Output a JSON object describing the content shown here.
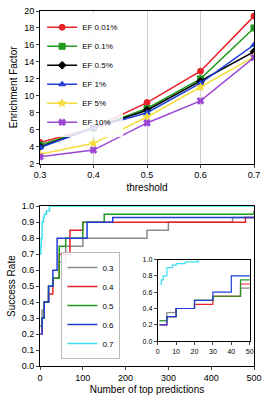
{
  "chart_data": [
    {
      "type": "line",
      "x_label": "threshold",
      "y_label": "Enrichment Factor",
      "x": [
        0.3,
        0.4,
        0.5,
        0.6,
        0.7
      ],
      "xlim": [
        0.3,
        0.7
      ],
      "xticks": [
        0.3,
        0.4,
        0.5,
        0.6,
        0.7
      ],
      "ylim": [
        2,
        20
      ],
      "yticks": [
        2,
        4,
        6,
        8,
        10,
        12,
        14,
        16,
        18,
        20
      ],
      "grid": true,
      "legend": "upper left",
      "series": [
        {
          "name": "EF 0.01%",
          "color": "#e8202a",
          "marker": "circle",
          "values": [
            4.5,
            6.2,
            9.2,
            12.9,
            19.4
          ]
        },
        {
          "name": "EF 0.1%",
          "color": "#1f9a1f",
          "marker": "square",
          "values": [
            4.2,
            6.2,
            8.5,
            12.0,
            18.0
          ]
        },
        {
          "name": "EF 0.5%",
          "color": "#000000",
          "marker": "diamond",
          "values": [
            4.0,
            6.2,
            8.3,
            11.7,
            15.2
          ]
        },
        {
          "name": "EF 1%",
          "color": "#1f3fd6",
          "marker": "triangle-up",
          "values": [
            3.9,
            6.2,
            8.0,
            11.5,
            16.0
          ]
        },
        {
          "name": "EF 5%",
          "color": "#f5dc3a",
          "marker": "star",
          "values": [
            3.1,
            4.4,
            7.5,
            11.0,
            14.6
          ]
        },
        {
          "name": "EF 10%",
          "color": "#9b45d6",
          "marker": "x",
          "values": [
            2.8,
            3.6,
            6.8,
            9.4,
            14.5
          ]
        }
      ]
    },
    {
      "type": "line",
      "x_label": "Number of top predictions",
      "y_label": "Success Rate",
      "xlim": [
        0,
        500
      ],
      "xticks": [
        0,
        100,
        200,
        300,
        400,
        500
      ],
      "ylim": [
        0,
        1
      ],
      "yticks": [
        {
          "value": 0,
          "label": "0.0"
        },
        0.1,
        0.2,
        0.3,
        0.4,
        0.5,
        0.6,
        0.7,
        0.8,
        0.9,
        {
          "value": 1,
          "label": "1.0"
        }
      ],
      "line_style": "step",
      "legend": "lower left",
      "series": [
        {
          "name": "0.3",
          "color": "#8c8c8c",
          "x": [
            1,
            5,
            10,
            20,
            30,
            45,
            60,
            100,
            250,
            300,
            450,
            500
          ],
          "values": [
            0.25,
            0.35,
            0.4,
            0.5,
            0.55,
            0.65,
            0.75,
            0.8,
            0.85,
            0.9,
            0.93,
            0.93
          ]
        },
        {
          "name": "0.4",
          "color": "#e8202a",
          "x": [
            1,
            5,
            10,
            20,
            30,
            45,
            70,
            100,
            480,
            500
          ],
          "values": [
            0.2,
            0.3,
            0.4,
            0.45,
            0.55,
            0.7,
            0.85,
            0.9,
            0.93,
            0.93
          ]
        },
        {
          "name": "0.5",
          "color": "#1f9a1f",
          "x": [
            1,
            5,
            10,
            20,
            30,
            45,
            60,
            100,
            150,
            500
          ],
          "values": [
            0.25,
            0.3,
            0.4,
            0.5,
            0.55,
            0.75,
            0.8,
            0.9,
            0.95,
            0.97
          ]
        },
        {
          "name": "0.6",
          "color": "#1f3fd6",
          "x": [
            1,
            5,
            10,
            20,
            30,
            40,
            110,
            170,
            500
          ],
          "values": [
            0.2,
            0.3,
            0.4,
            0.5,
            0.6,
            0.8,
            0.9,
            0.93,
            0.93
          ]
        },
        {
          "name": "0.7",
          "color": "#3ee0f0",
          "x": [
            1,
            2,
            3,
            5,
            8,
            10,
            15,
            22,
            500
          ],
          "values": [
            0.7,
            0.75,
            0.8,
            0.9,
            0.93,
            0.95,
            0.97,
            1.0,
            1.0
          ]
        }
      ]
    },
    {
      "type": "line",
      "xlim": [
        0,
        50
      ],
      "xticks": [
        0,
        10,
        20,
        30,
        40,
        50
      ],
      "ylim": [
        0,
        1
      ],
      "yticks": [
        {
          "value": 0,
          "label": "0.0"
        },
        0.2,
        0.4,
        0.6,
        0.8,
        {
          "value": 1,
          "label": "1.0"
        }
      ],
      "line_style": "step",
      "series": [
        {
          "color": "#8c8c8c",
          "x": [
            1,
            5,
            10,
            20,
            30,
            45,
            60,
            100,
            250,
            300,
            450,
            500
          ],
          "values": [
            0.25,
            0.35,
            0.4,
            0.5,
            0.55,
            0.65,
            0.75,
            0.8,
            0.85,
            0.9,
            0.93,
            0.93
          ]
        },
        {
          "color": "#e8202a",
          "x": [
            1,
            5,
            10,
            20,
            30,
            45,
            70,
            100,
            480,
            500
          ],
          "values": [
            0.2,
            0.3,
            0.4,
            0.45,
            0.55,
            0.7,
            0.85,
            0.9,
            0.93,
            0.93
          ]
        },
        {
          "color": "#1f9a1f",
          "x": [
            1,
            5,
            10,
            20,
            30,
            45,
            60,
            100,
            150,
            500
          ],
          "values": [
            0.25,
            0.3,
            0.4,
            0.5,
            0.55,
            0.75,
            0.8,
            0.9,
            0.95,
            0.97
          ]
        },
        {
          "color": "#1f3fd6",
          "x": [
            1,
            5,
            10,
            20,
            30,
            40,
            110,
            170,
            500
          ],
          "values": [
            0.2,
            0.3,
            0.4,
            0.5,
            0.6,
            0.8,
            0.9,
            0.93,
            0.93
          ]
        },
        {
          "color": "#3ee0f0",
          "x": [
            1,
            2,
            3,
            5,
            8,
            10,
            15,
            22,
            500
          ],
          "values": [
            0.7,
            0.75,
            0.8,
            0.9,
            0.93,
            0.95,
            0.97,
            1.0,
            1.0
          ]
        }
      ]
    }
  ]
}
